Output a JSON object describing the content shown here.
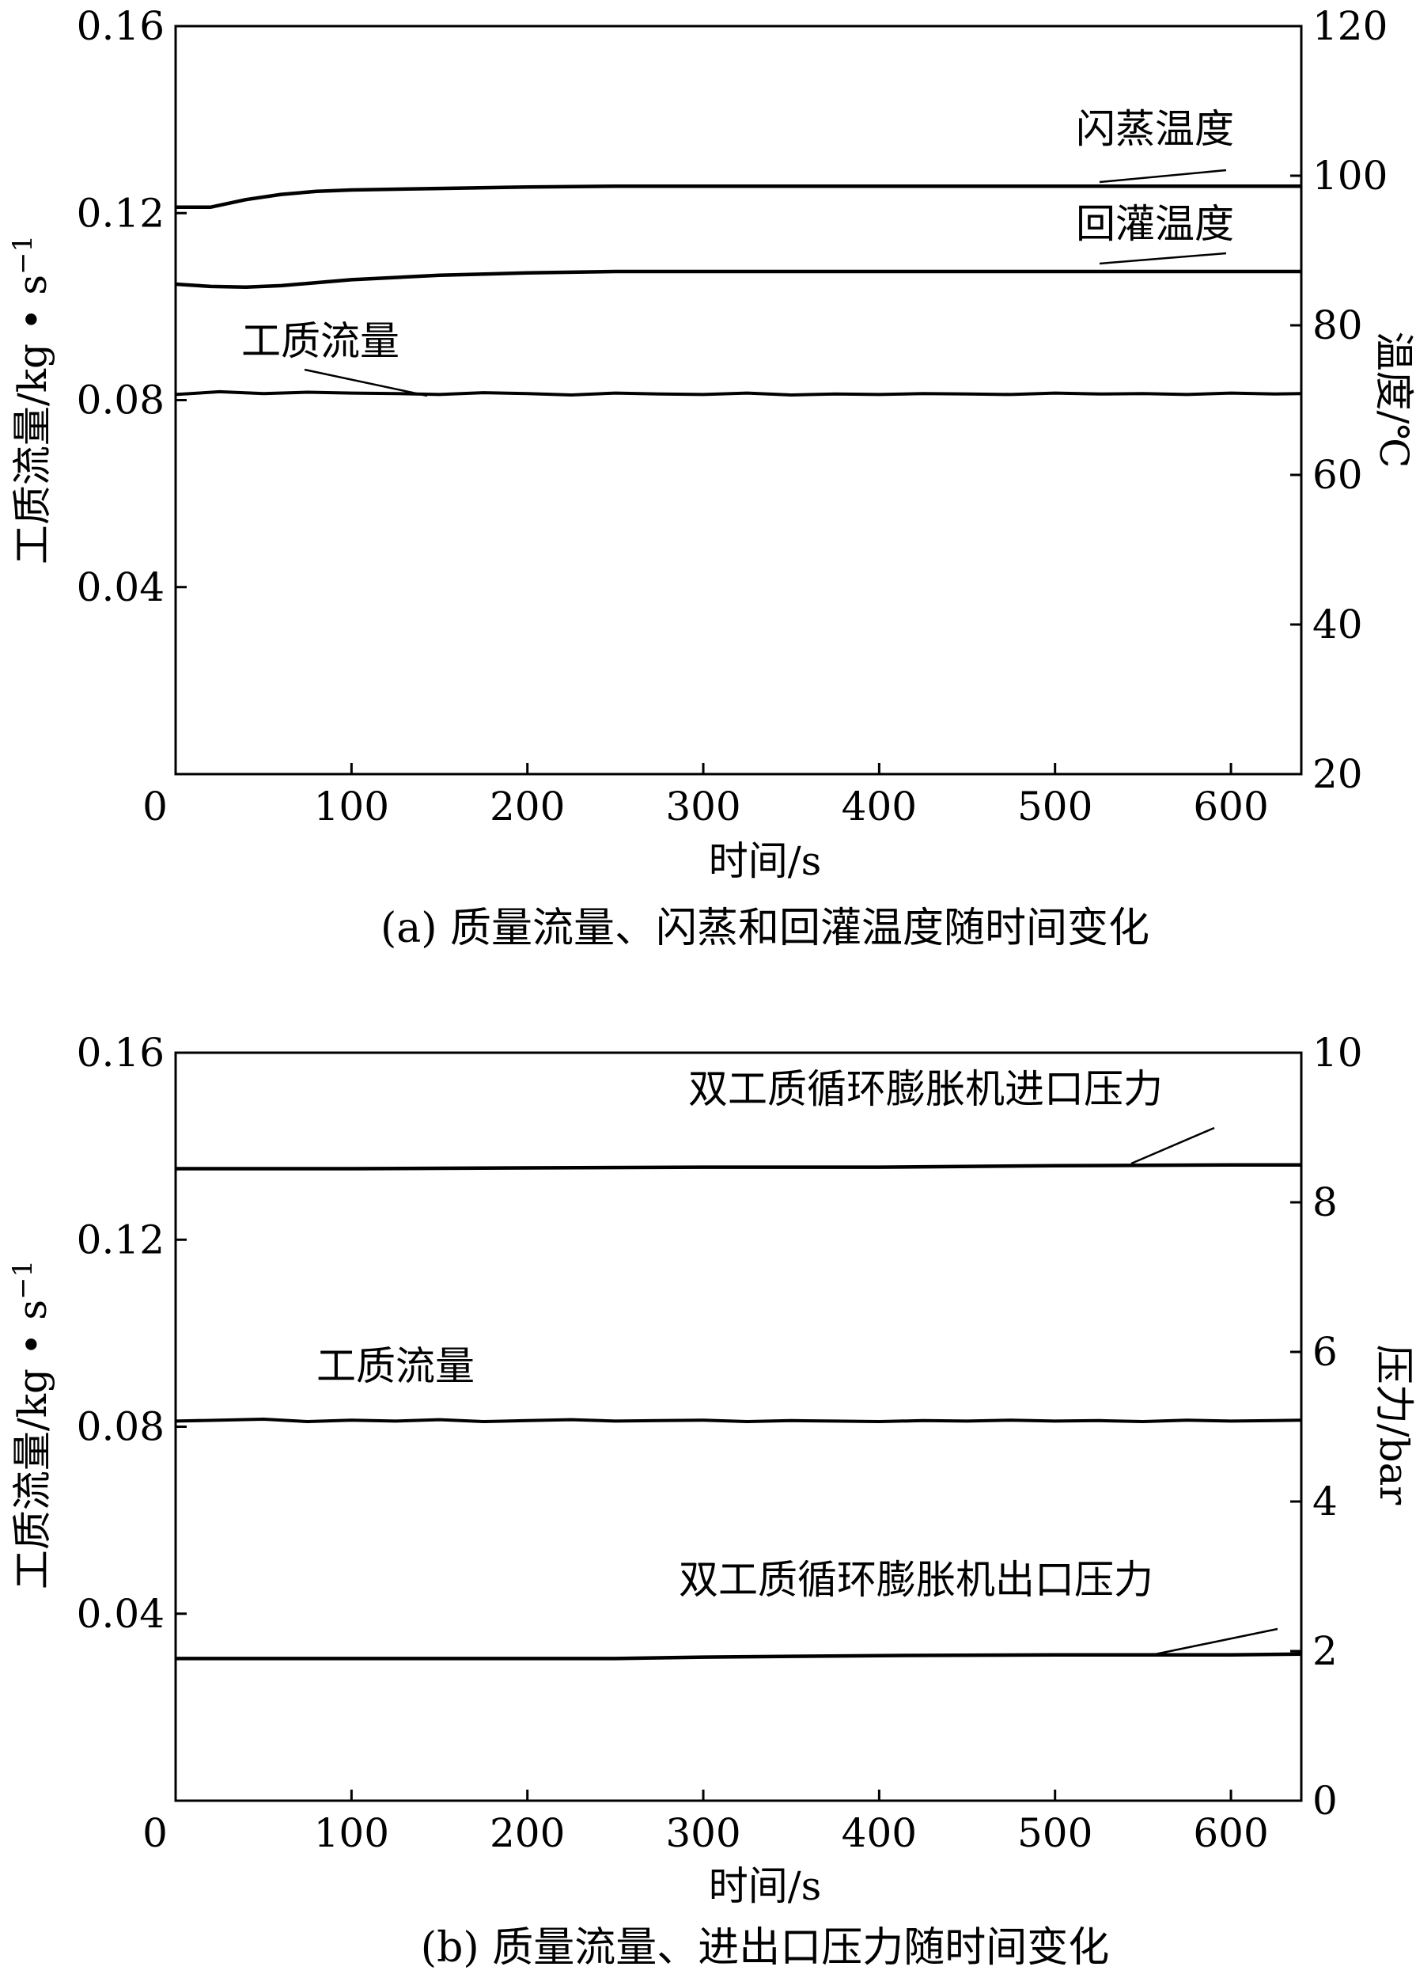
{
  "chart_data": [
    {
      "type": "line",
      "caption": "(a) 质量流量、闪蒸和回灌温度随时间变化",
      "xlabel": "时间/s",
      "ylabel_left": "工质流量/kg • s",
      "ylabel_left_sup": "−1",
      "ylabel_right": "温度/℃",
      "xlim": [
        0,
        640
      ],
      "ylim_left": [
        0.0,
        0.16
      ],
      "ylim_right": [
        20,
        120
      ],
      "xticks": [
        "0",
        "100",
        "200",
        "300",
        "400",
        "500",
        "600"
      ],
      "yticks_left": [
        "0.04",
        "0.08",
        "0.12",
        "0.16"
      ],
      "yticks_right": [
        "20",
        "40",
        "60",
        "80",
        "100",
        "120"
      ],
      "annotations": [
        "闪蒸温度",
        "回灌温度",
        "工质流量"
      ],
      "series": [
        {
          "name": "闪蒸温度",
          "axis": "right",
          "x": [
            0,
            20,
            40,
            60,
            80,
            100,
            150,
            200,
            250,
            300,
            400,
            500,
            600,
            640
          ],
          "y": [
            95.8,
            95.8,
            96.8,
            97.5,
            97.9,
            98.1,
            98.3,
            98.5,
            98.6,
            98.6,
            98.6,
            98.6,
            98.6,
            98.6
          ]
        },
        {
          "name": "回灌温度",
          "axis": "right",
          "x": [
            0,
            20,
            40,
            60,
            80,
            100,
            150,
            200,
            250,
            300,
            400,
            500,
            600,
            640
          ],
          "y": [
            85.5,
            85.2,
            85.1,
            85.3,
            85.7,
            86.1,
            86.7,
            87.0,
            87.2,
            87.2,
            87.2,
            87.2,
            87.2,
            87.2
          ]
        },
        {
          "name": "工质流量",
          "axis": "left",
          "x": [
            0,
            25,
            50,
            75,
            100,
            125,
            150,
            175,
            200,
            225,
            250,
            275,
            300,
            325,
            350,
            375,
            400,
            425,
            450,
            475,
            500,
            525,
            550,
            575,
            600,
            625,
            640
          ],
          "y": [
            0.0812,
            0.0818,
            0.0814,
            0.0817,
            0.0815,
            0.0814,
            0.0812,
            0.0816,
            0.0814,
            0.0811,
            0.0815,
            0.0813,
            0.0812,
            0.0815,
            0.0811,
            0.0813,
            0.0812,
            0.0814,
            0.0813,
            0.0812,
            0.0815,
            0.0813,
            0.0814,
            0.0812,
            0.0815,
            0.0813,
            0.0814
          ]
        }
      ]
    },
    {
      "type": "line",
      "caption": "(b) 质量流量、进出口压力随时间变化",
      "xlabel": "时间/s",
      "ylabel_left": "工质流量/kg • s",
      "ylabel_left_sup": "−1",
      "ylabel_right": "压力/bar",
      "xlim": [
        0,
        640
      ],
      "ylim_left": [
        0.0,
        0.16
      ],
      "ylim_right": [
        0,
        10
      ],
      "xticks": [
        "0",
        "100",
        "200",
        "300",
        "400",
        "500",
        "600"
      ],
      "yticks_left": [
        "0.04",
        "0.08",
        "0.12",
        "0.16"
      ],
      "yticks_right": [
        "0",
        "2",
        "4",
        "6",
        "8",
        "10"
      ],
      "annotations": [
        "双工质循环膨胀机进口压力",
        "工质流量",
        "双工质循环膨胀机出口压力"
      ],
      "series": [
        {
          "name": "双工质循环膨胀机进口压力",
          "axis": "right",
          "x": [
            0,
            100,
            200,
            300,
            400,
            500,
            600,
            640
          ],
          "y": [
            8.45,
            8.45,
            8.46,
            8.47,
            8.47,
            8.49,
            8.5,
            8.5
          ]
        },
        {
          "name": "工质流量",
          "axis": "left",
          "x": [
            0,
            25,
            50,
            75,
            100,
            125,
            150,
            175,
            200,
            225,
            250,
            275,
            300,
            325,
            350,
            375,
            400,
            425,
            450,
            475,
            500,
            525,
            550,
            575,
            600,
            625,
            640
          ],
          "y": [
            0.0812,
            0.0814,
            0.0816,
            0.0811,
            0.0814,
            0.0812,
            0.0815,
            0.0811,
            0.0813,
            0.0815,
            0.0812,
            0.0813,
            0.0814,
            0.0811,
            0.0813,
            0.0812,
            0.0811,
            0.0813,
            0.0812,
            0.0814,
            0.0812,
            0.0813,
            0.0811,
            0.0814,
            0.0812,
            0.0813,
            0.0814
          ]
        },
        {
          "name": "双工质循环膨胀机出口压力",
          "axis": "right",
          "x": [
            0,
            100,
            200,
            250,
            300,
            350,
            400,
            500,
            600,
            640
          ],
          "y": [
            1.9,
            1.9,
            1.9,
            1.9,
            1.92,
            1.93,
            1.94,
            1.95,
            1.95,
            1.96
          ]
        }
      ]
    }
  ]
}
